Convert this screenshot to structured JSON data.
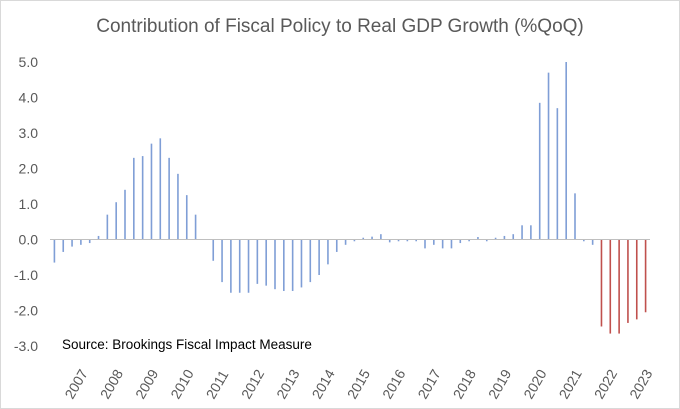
{
  "chart_data": {
    "type": "bar",
    "title": "Contribution of Fiscal Policy to Real GDP Growth (%QoQ)",
    "xlabel": "",
    "ylabel": "",
    "ylim": [
      -3.0,
      5.0
    ],
    "yticks": [
      "5.0",
      "4.0",
      "3.0",
      "2.0",
      "1.0",
      "0.0",
      "-1.0",
      "-2.0",
      "-3.0"
    ],
    "ytick_values": [
      5,
      4,
      3,
      2,
      1,
      0,
      -1,
      -2,
      -3
    ],
    "year_labels": [
      "2007",
      "2008",
      "2009",
      "2010",
      "2011",
      "2012",
      "2013",
      "2014",
      "2015",
      "2016",
      "2017",
      "2018",
      "2019",
      "2020",
      "2021",
      "2022",
      "2023"
    ],
    "grid": false,
    "annotation": "Source: Brookings Fiscal Impact Measure",
    "colors": {
      "historical": "#7f9ed6",
      "projection": "#c0504d",
      "axis": "#bfbfbf",
      "text": "#595959"
    },
    "projection_start_index": 62,
    "values": [
      -0.65,
      -0.35,
      -0.2,
      -0.15,
      -0.1,
      0.1,
      0.7,
      1.05,
      1.4,
      2.3,
      2.35,
      2.7,
      2.85,
      2.3,
      1.85,
      1.25,
      0.7,
      0.0,
      -0.6,
      -1.2,
      -1.5,
      -1.5,
      -1.5,
      -1.25,
      -1.3,
      -1.4,
      -1.45,
      -1.45,
      -1.35,
      -1.2,
      -1.0,
      -0.7,
      -0.35,
      -0.15,
      -0.05,
      0.05,
      0.08,
      0.15,
      -0.08,
      -0.05,
      -0.05,
      -0.05,
      -0.25,
      -0.15,
      -0.25,
      -0.25,
      -0.1,
      -0.05,
      0.07,
      -0.05,
      0.05,
      0.1,
      0.15,
      0.4,
      0.4,
      3.85,
      4.7,
      3.7,
      5.0,
      1.3,
      -0.05,
      -0.15,
      -2.45,
      -2.65,
      -2.65,
      -2.35,
      -2.25,
      -2.05
    ]
  }
}
